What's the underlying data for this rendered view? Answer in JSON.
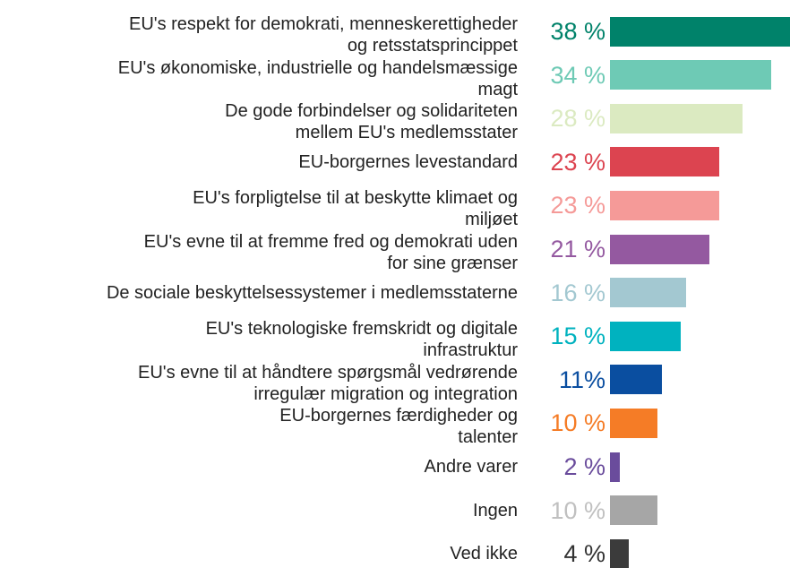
{
  "chart_data": {
    "type": "bar",
    "orientation": "horizontal",
    "categories": [
      "EU's respekt for demokrati, menneskerettigheder\nog retsstatsprincippet",
      "EU's økonomiske, industrielle og handelsmæssige\nmagt",
      "De gode forbindelser og solidariteten\nmellem EU's medlemsstater",
      "EU-borgernes levestandard",
      "EU's forpligtelse til at beskytte klimaet og\nmiljøet",
      "EU's evne til at fremme fred og demokrati uden\nfor sine grænser",
      "De sociale beskyttelsessystemer i medlemsstaterne",
      "EU's teknologiske fremskridt og digitale\ninfrastruktur",
      "EU's evne til at håndtere spørgsmål vedrørende\nirregulær migration og integration",
      "EU-borgernes færdigheder og\ntalenter",
      "Andre varer",
      "Ingen",
      "Ved ikke"
    ],
    "values": [
      38,
      34,
      28,
      23,
      23,
      21,
      16,
      15,
      11,
      10,
      2,
      10,
      4
    ],
    "value_labels": [
      "38 %",
      "34 %",
      "28 %",
      "23 %",
      "23 %",
      "21 %",
      "16 %",
      "15 %",
      "11%",
      "10 %",
      "2 %",
      "10 %",
      "4 %"
    ],
    "colors": [
      "#00826a",
      "#6ecab5",
      "#dbeac1",
      "#dc4450",
      "#f59a98",
      "#9459a0",
      "#a3c8d1",
      "#00b2bf",
      "#0a4ea0",
      "#f57c26",
      "#6a4c9c",
      "#a6a6a6",
      "#3b3b3b"
    ],
    "label_colors": [
      "#00826a",
      "#6ecab5",
      "#dbeac1",
      "#dc4450",
      "#f59a98",
      "#9459a0",
      "#a3c8d1",
      "#00b2bf",
      "#0a4ea0",
      "#f57c26",
      "#6a4c9c",
      "#c0c0c0",
      "#333333"
    ]
  }
}
